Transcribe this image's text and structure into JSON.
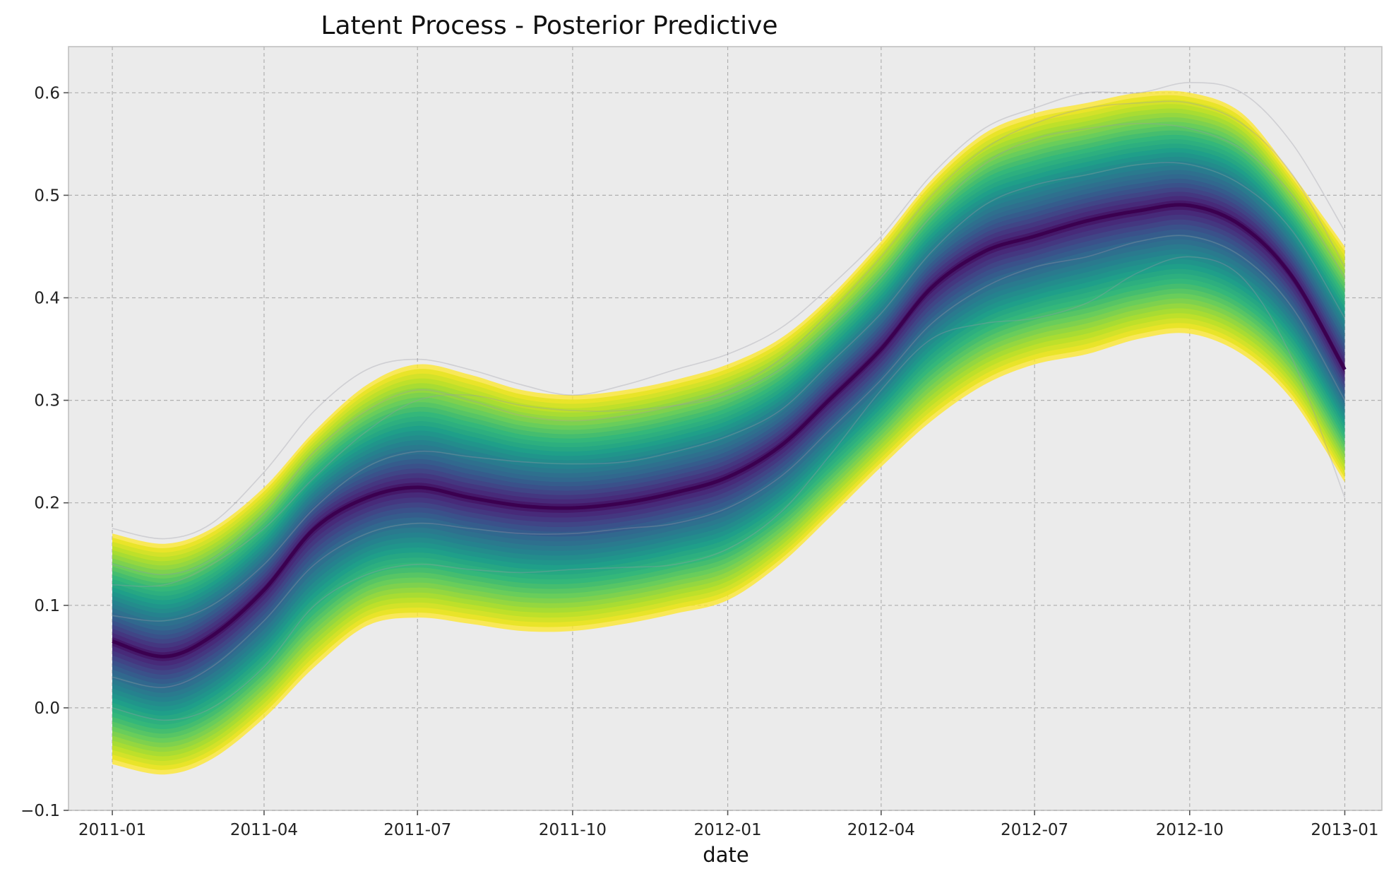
{
  "chart_data": {
    "type": "area",
    "title": "Latent Process - Posterior Predictive",
    "xlabel": "date",
    "ylabel": "",
    "xlim": [
      "2010-12-06",
      "2013-01-23"
    ],
    "ylim": [
      -0.1,
      0.645
    ],
    "x_ticks": [
      "2011-01",
      "2011-04",
      "2011-07",
      "2011-10",
      "2012-01",
      "2012-04",
      "2012-07",
      "2012-10",
      "2013-01"
    ],
    "y_ticks": [
      "−0.1",
      "0.0",
      "0.1",
      "0.2",
      "0.3",
      "0.4",
      "0.5",
      "0.6"
    ],
    "y_tick_values": [
      -0.1,
      0.0,
      0.1,
      0.2,
      0.3,
      0.4,
      0.5,
      0.6
    ],
    "grid": true,
    "colormap": "viridis (dark purple at median, yellow at outer quantiles)",
    "colors": {
      "background": "#ebebeb",
      "grid": "#b0b0b0",
      "sample_lines": "#9a9aa6",
      "band_inner": "#440154",
      "band_outer": "#fde725"
    },
    "x": [
      "2011-01-01",
      "2011-02-01",
      "2011-03-01",
      "2011-04-01",
      "2011-05-01",
      "2011-06-01",
      "2011-07-01",
      "2011-08-01",
      "2011-09-01",
      "2011-10-01",
      "2011-11-01",
      "2011-12-01",
      "2012-01-01",
      "2012-02-01",
      "2012-03-01",
      "2012-04-01",
      "2012-05-01",
      "2012-06-01",
      "2012-07-01",
      "2012-08-01",
      "2012-09-01",
      "2012-10-01",
      "2012-11-01",
      "2012-12-01",
      "2013-01-01"
    ],
    "median": [
      0.065,
      0.05,
      0.07,
      0.115,
      0.175,
      0.205,
      0.215,
      0.205,
      0.197,
      0.195,
      0.2,
      0.21,
      0.225,
      0.255,
      0.3,
      0.35,
      0.41,
      0.445,
      0.46,
      0.475,
      0.485,
      0.49,
      0.47,
      0.42,
      0.33
    ],
    "upper": [
      0.17,
      0.16,
      0.175,
      0.215,
      0.27,
      0.315,
      0.335,
      0.325,
      0.31,
      0.305,
      0.31,
      0.32,
      0.335,
      0.36,
      0.4,
      0.455,
      0.515,
      0.56,
      0.58,
      0.59,
      0.6,
      0.6,
      0.58,
      0.52,
      0.45
    ],
    "lower": [
      -0.055,
      -0.065,
      -0.05,
      -0.01,
      0.04,
      0.08,
      0.088,
      0.082,
      0.075,
      0.075,
      0.082,
      0.092,
      0.105,
      0.14,
      0.185,
      0.235,
      0.28,
      0.315,
      0.335,
      0.345,
      0.36,
      0.365,
      0.345,
      0.3,
      0.22
    ],
    "sample_paths": [
      [
        0.175,
        0.165,
        0.18,
        0.23,
        0.29,
        0.33,
        0.34,
        0.33,
        0.315,
        0.305,
        0.315,
        0.33,
        0.345,
        0.37,
        0.41,
        0.46,
        0.52,
        0.565,
        0.585,
        0.6,
        0.6,
        0.61,
        0.6,
        0.55,
        0.465
      ],
      [
        0.12,
        0.12,
        0.14,
        0.175,
        0.225,
        0.27,
        0.3,
        0.305,
        0.295,
        0.29,
        0.29,
        0.295,
        0.305,
        0.33,
        0.37,
        0.42,
        0.48,
        0.53,
        0.555,
        0.565,
        0.57,
        0.565,
        0.545,
        0.5,
        0.42
      ],
      [
        0.03,
        0.02,
        0.04,
        0.085,
        0.14,
        0.17,
        0.18,
        0.175,
        0.17,
        0.17,
        0.175,
        0.18,
        0.195,
        0.225,
        0.27,
        0.32,
        0.375,
        0.41,
        0.43,
        0.44,
        0.455,
        0.46,
        0.44,
        0.39,
        0.3
      ],
      [
        0.0,
        -0.012,
        0.0,
        0.04,
        0.1,
        0.13,
        0.14,
        0.135,
        0.132,
        0.135,
        0.137,
        0.14,
        0.155,
        0.19,
        0.245,
        0.31,
        0.36,
        0.375,
        0.38,
        0.395,
        0.425,
        0.44,
        0.42,
        0.34,
        0.205
      ],
      [
        0.09,
        0.085,
        0.1,
        0.14,
        0.195,
        0.235,
        0.25,
        0.245,
        0.24,
        0.238,
        0.24,
        0.25,
        0.265,
        0.29,
        0.335,
        0.385,
        0.445,
        0.49,
        0.51,
        0.52,
        0.53,
        0.53,
        0.51,
        0.465,
        0.38
      ],
      [
        0.14,
        0.13,
        0.145,
        0.19,
        0.25,
        0.29,
        0.31,
        0.3,
        0.285,
        0.28,
        0.285,
        0.295,
        0.31,
        0.34,
        0.385,
        0.44,
        0.5,
        0.545,
        0.57,
        0.585,
        0.59,
        0.59,
        0.57,
        0.52,
        0.43
      ]
    ]
  }
}
